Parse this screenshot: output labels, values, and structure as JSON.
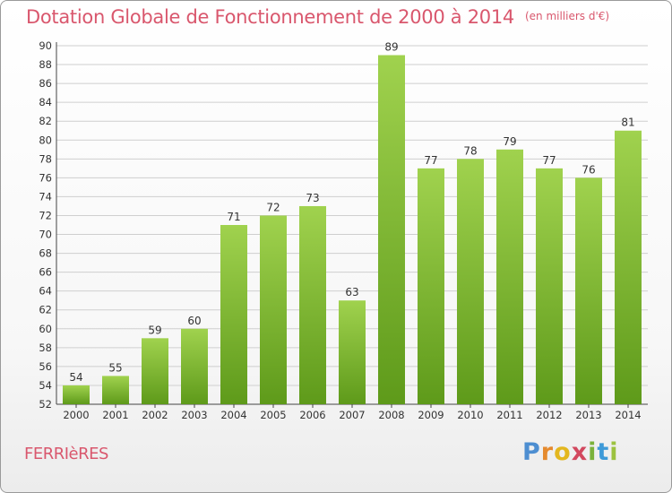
{
  "title": "Dotation Globale de Fonctionnement de 2000 à 2014",
  "unit": "(en milliers d'€)",
  "commune": "FERRIèRES",
  "brand": "Proxiti",
  "colors": {
    "title": "#d9576d",
    "bar_light": "#9ccf4a",
    "bar_dark": "#5e9a1a",
    "grid": "#cccccc"
  },
  "chart_data": {
    "type": "bar",
    "categories": [
      "2000",
      "2001",
      "2002",
      "2003",
      "2004",
      "2005",
      "2006",
      "2007",
      "2008",
      "2009",
      "2010",
      "2011",
      "2012",
      "2013",
      "2014"
    ],
    "values": [
      54,
      55,
      59,
      60,
      71,
      72,
      73,
      63,
      89,
      77,
      78,
      79,
      77,
      76,
      81
    ],
    "title": "Dotation Globale de Fonctionnement de 2000 à 2014",
    "ylim": [
      52,
      90
    ],
    "yticks": [
      52,
      54,
      56,
      58,
      60,
      62,
      64,
      66,
      68,
      70,
      72,
      74,
      76,
      78,
      80,
      82,
      84,
      86,
      88,
      90
    ],
    "grid": true,
    "data_labels": true
  }
}
